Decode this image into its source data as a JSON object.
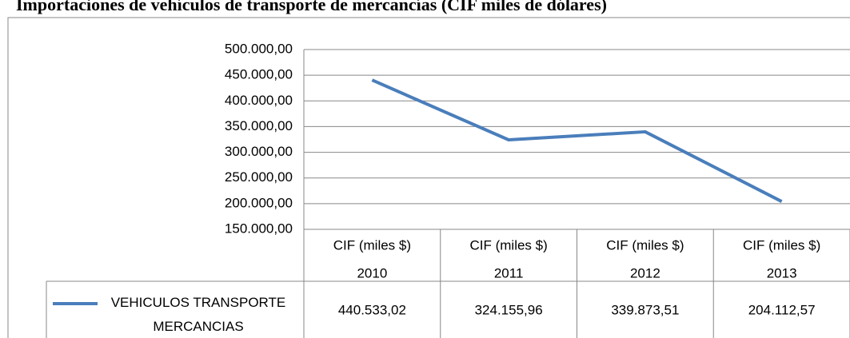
{
  "chart_data": {
    "type": "line",
    "title": "Importaciones de vehículos de transporte de mercancías (CIF miles de dólares)",
    "categories": [
      [
        "CIF (miles $)",
        "2010"
      ],
      [
        "CIF (miles $)",
        "2011"
      ],
      [
        "CIF (miles $)",
        "2012"
      ],
      [
        "CIF (miles $)",
        "2013"
      ]
    ],
    "series": [
      {
        "name": "VEHICULOS TRANSPORTE MERCANCIAS",
        "color": "#4a7ebb",
        "values": [
          440533.02,
          324155.96,
          339873.51,
          204112.57
        ],
        "value_labels": [
          "440.533,02",
          "324.155,96",
          "339.873,51",
          "204.112,57"
        ]
      }
    ],
    "ylim": [
      150000,
      500000
    ],
    "yticks": [
      {
        "value": 150000,
        "label": "150.000,00"
      },
      {
        "value": 200000,
        "label": "200.000,00"
      },
      {
        "value": 250000,
        "label": "250.000,00"
      },
      {
        "value": 300000,
        "label": "300.000,00"
      },
      {
        "value": 350000,
        "label": "350.000,00"
      },
      {
        "value": 400000,
        "label": "400.000,00"
      },
      {
        "value": 450000,
        "label": "450.000,00"
      },
      {
        "value": 500000,
        "label": "500.000,00"
      }
    ],
    "grid": true
  }
}
